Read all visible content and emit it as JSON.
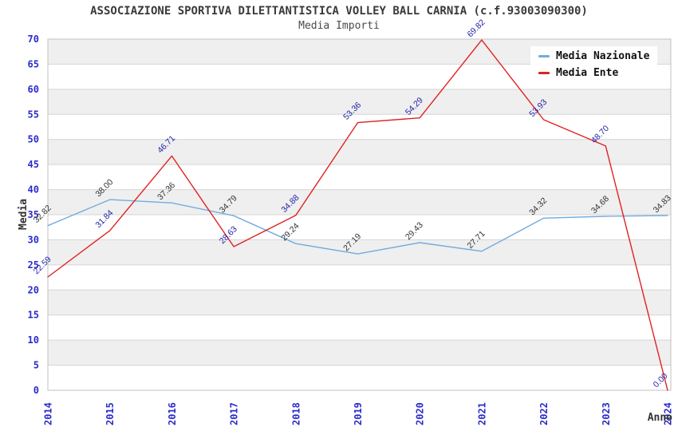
{
  "header": {
    "title": "ASSOCIAZIONE SPORTIVA DILETTANTISTICA VOLLEY BALL CARNIA (c.f.93003090300)",
    "subtitle": "Media Importi"
  },
  "legend": {
    "items": [
      {
        "label": "Media Nazionale",
        "color": "#72ACE0"
      },
      {
        "label": "Media Ente",
        "color": "#E02222"
      }
    ]
  },
  "chart_data": {
    "type": "line",
    "title": "ASSOCIAZIONE SPORTIVA DILETTANTISTICA VOLLEY BALL CARNIA (c.f.93003090300)",
    "subtitle": "Media Importi",
    "xlabel": "Anno",
    "ylabel": "Media",
    "categories": [
      "2014",
      "2015",
      "2016",
      "2017",
      "2018",
      "2019",
      "2020",
      "2021",
      "2022",
      "2023",
      "2024"
    ],
    "series": [
      {
        "name": "Media Nazionale",
        "color": "#72ACE0",
        "label_color": "#333333",
        "values": [
          32.82,
          38.0,
          37.36,
          34.79,
          29.24,
          27.19,
          29.43,
          27.71,
          34.32,
          34.68,
          34.83
        ]
      },
      {
        "name": "Media Ente",
        "color": "#E02222",
        "label_color": "#2323A8",
        "values": [
          22.59,
          31.84,
          46.71,
          28.63,
          34.88,
          53.36,
          54.29,
          69.82,
          53.93,
          48.7,
          0.0
        ]
      }
    ],
    "ylim": [
      0,
      70
    ],
    "ytick_step": 5,
    "yticks": [
      0,
      5,
      10,
      15,
      20,
      25,
      30,
      35,
      40,
      45,
      50,
      55,
      60,
      65,
      70
    ],
    "xtick_rotation": -90,
    "value_label_rotation": -45,
    "value_label_decimals": 2,
    "grid": "horizontal-bands",
    "band_colors": [
      "#FFFFFF",
      "#EFEFEF"
    ],
    "gridline_color": "#D5D5D5",
    "plot_border_color": "#C2C2C2",
    "tick_color": "#2B2BCC",
    "axis_title_color": "#333333",
    "legend_position": "top-right"
  }
}
